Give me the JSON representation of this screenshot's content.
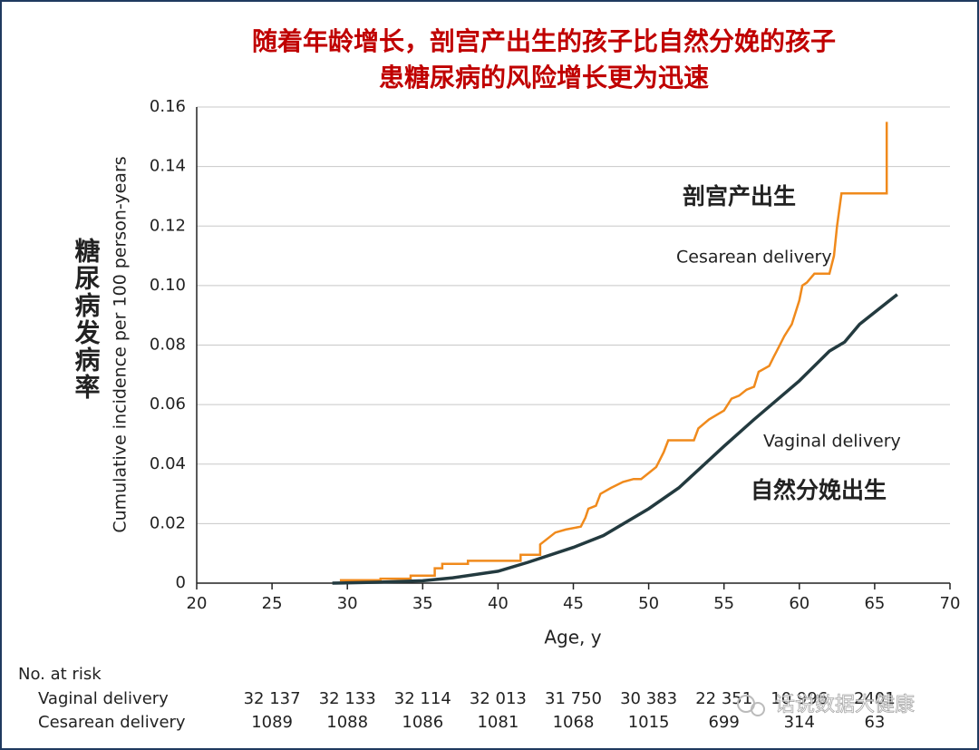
{
  "chart_data": {
    "type": "line",
    "title": [
      "随着年龄增长，剖宫产出生的孩子比自然分娩的孩子",
      "患糖尿病的风险增长更为迅速"
    ],
    "y_label_cn": "糖尿病发病率",
    "y_label": "Cumulative incidence per 100 person-years",
    "x_label": "Age, y",
    "annotations": [
      "剖宫产出生",
      "Cesarean delivery",
      "Vaginal delivery",
      "自然分娩出生"
    ],
    "xlim": [
      20,
      70
    ],
    "xticks": [
      20,
      25,
      30,
      35,
      40,
      45,
      50,
      55,
      60,
      65,
      70
    ],
    "ylim": [
      0,
      0.16
    ],
    "yticks": [
      0,
      0.02,
      0.04,
      0.06,
      0.08,
      {
        "value": 0.1,
        "label": "0.10"
      },
      0.12,
      0.14,
      0.16
    ],
    "grid": true,
    "series": [
      {
        "name": "Cesarean delivery",
        "color": "#f08a1c",
        "x": [
          29.5,
          32.2,
          32.2,
          34.2,
          34.2,
          35.8,
          35.8,
          36.3,
          36.3,
          38,
          38,
          41.5,
          41.5,
          42.8,
          42.8,
          43.3,
          43.8,
          44.5,
          45.5,
          45.8,
          46,
          46.5,
          46.8,
          47.5,
          48.3,
          49,
          49.5,
          50,
          50.5,
          51,
          51.3,
          53,
          53.3,
          54,
          55,
          55.5,
          56,
          56.5,
          57,
          57.3,
          58,
          58.3,
          58.5,
          59,
          59.5,
          60,
          60.2,
          60.5,
          61,
          62,
          62.3,
          62.5,
          62.8,
          65.8,
          65.8
        ],
        "values": [
          0.001,
          0.001,
          0.0015,
          0.0015,
          0.0025,
          0.0025,
          0.005,
          0.005,
          0.0065,
          0.0065,
          0.0075,
          0.0075,
          0.0095,
          0.0095,
          0.013,
          0.015,
          0.017,
          0.018,
          0.019,
          0.022,
          0.025,
          0.026,
          0.03,
          0.032,
          0.034,
          0.035,
          0.035,
          0.037,
          0.039,
          0.044,
          0.048,
          0.048,
          0.052,
          0.055,
          0.058,
          0.062,
          0.063,
          0.065,
          0.066,
          0.071,
          0.073,
          0.076,
          0.078,
          0.083,
          0.087,
          0.095,
          0.1,
          0.101,
          0.104,
          0.104,
          0.11,
          0.12,
          0.131,
          0.131,
          0.155
        ]
      },
      {
        "name": "Vaginal delivery",
        "color": "#233a3f",
        "x": [
          29,
          32,
          35,
          37,
          40,
          42,
          45,
          47,
          50,
          52,
          55,
          57,
          60,
          62,
          63,
          64,
          65,
          66,
          66.5
        ],
        "values": [
          0,
          0.0003,
          0.0008,
          0.0018,
          0.004,
          0.007,
          0.012,
          0.016,
          0.025,
          0.032,
          0.046,
          0.055,
          0.068,
          0.078,
          0.081,
          0.087,
          0.091,
          0.095,
          0.097
        ]
      }
    ]
  },
  "risk_table": {
    "title": "No. at risk",
    "rows": [
      {
        "name": "Vaginal delivery",
        "values": [
          "32 137",
          "32 133",
          "32 114",
          "32 013",
          "31 750",
          "30 383",
          "22 351",
          "10 996",
          "2401"
        ]
      },
      {
        "name": "Cesarean delivery",
        "values": [
          "1089",
          "1088",
          "1086",
          "1081",
          "1068",
          "1015",
          "699",
          "314",
          "63"
        ]
      }
    ]
  },
  "watermark": "话说数据大健康"
}
